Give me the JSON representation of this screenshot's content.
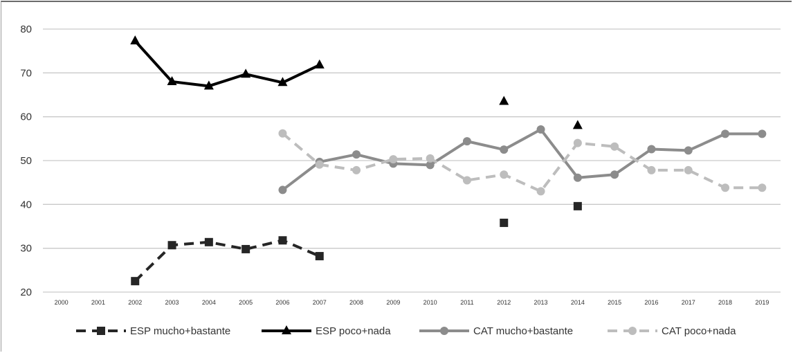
{
  "chart_data": {
    "type": "line",
    "title": "",
    "xlabel": "",
    "ylabel": "",
    "ylim": [
      20,
      80
    ],
    "yticks": [
      20,
      30,
      40,
      50,
      60,
      70,
      80
    ],
    "grid": "horizontal",
    "legend_position": "bottom",
    "x": [
      "2000",
      "2001",
      "2002",
      "2003",
      "2004",
      "2005",
      "2006",
      "2007",
      "2008",
      "2009",
      "2010",
      "2011",
      "2012",
      "2013",
      "2014",
      "2015",
      "2016",
      "2017",
      "2018",
      "2019"
    ],
    "series": [
      {
        "name": "ESP mucho+bastante",
        "color": "#262626",
        "line_style": "dashed",
        "marker": "square",
        "values": [
          null,
          null,
          22.5,
          30.7,
          31.4,
          29.8,
          31.8,
          28.2,
          null,
          null,
          null,
          null,
          35.8,
          null,
          39.6,
          null,
          null,
          null,
          null,
          null
        ]
      },
      {
        "name": "ESP poco+nada",
        "color": "#000000",
        "line_style": "solid",
        "marker": "triangle",
        "values": [
          null,
          null,
          77.3,
          68.0,
          67.0,
          69.7,
          67.8,
          71.8,
          null,
          null,
          null,
          null,
          63.5,
          null,
          58.0,
          null,
          null,
          null,
          null,
          null
        ]
      },
      {
        "name": "CAT mucho+bastante",
        "color": "#8c8c8c",
        "line_style": "solid",
        "marker": "circle",
        "values": [
          null,
          null,
          null,
          null,
          null,
          null,
          43.3,
          49.7,
          51.4,
          49.3,
          49.0,
          54.4,
          52.5,
          57.1,
          46.1,
          46.8,
          52.6,
          52.3,
          56.1,
          56.1
        ]
      },
      {
        "name": "CAT poco+nada",
        "color": "#bdbdbd",
        "line_style": "dashed",
        "marker": "circle",
        "values": [
          null,
          null,
          null,
          null,
          null,
          null,
          56.2,
          49.1,
          47.8,
          50.3,
          50.5,
          45.5,
          46.8,
          43.0,
          54.0,
          53.2,
          47.8,
          47.8,
          43.8,
          43.8
        ]
      }
    ]
  }
}
